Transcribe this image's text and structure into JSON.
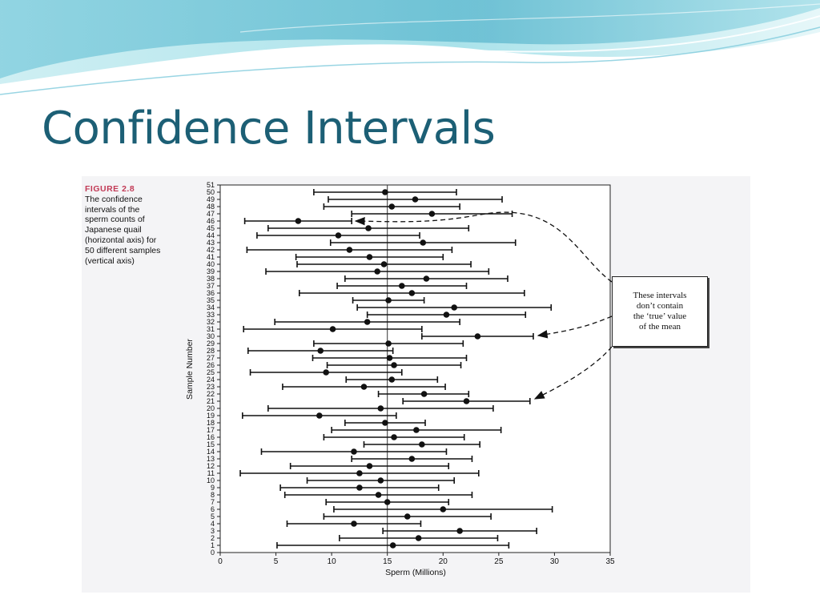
{
  "slide": {
    "title": "Confidence Intervals"
  },
  "figure": {
    "label": "FIGURE 2.8",
    "caption": "The confidence intervals of the sperm counts of Japanese quail (horizontal axis) for 50 different samples (vertical axis)",
    "annotation": "These intervals\ndon’t contain\nthe ‘true’ value\nof the mean"
  },
  "colors": {
    "title": "#1c5f75",
    "figure_label": "#c23a56",
    "banner_light": "#d8f3f5",
    "banner_mid": "#8fd6e2",
    "banner_dark": "#4fb4cc"
  },
  "chart_data": {
    "type": "scatter",
    "error_bars": "horizontal",
    "xlabel": "Sperm (Millions)",
    "ylabel": "Sample Number",
    "xlim": [
      0,
      35
    ],
    "ylim": [
      0,
      51
    ],
    "x_ticks": [
      0,
      5,
      10,
      15,
      20,
      25,
      30,
      35
    ],
    "y_ticks": [
      0,
      1,
      2,
      3,
      4,
      5,
      6,
      7,
      8,
      9,
      10,
      11,
      12,
      13,
      14,
      15,
      16,
      17,
      18,
      19,
      20,
      21,
      22,
      23,
      24,
      25,
      26,
      27,
      28,
      29,
      30,
      31,
      32,
      33,
      34,
      35,
      36,
      37,
      38,
      39,
      40,
      41,
      42,
      43,
      44,
      45,
      46,
      47,
      48,
      49,
      50,
      51
    ],
    "reference_line_x": 15,
    "samples": [
      {
        "n": 1,
        "mean": 15.5,
        "low": 5.1,
        "high": 25.9
      },
      {
        "n": 2,
        "mean": 17.8,
        "low": 10.7,
        "high": 24.9
      },
      {
        "n": 3,
        "mean": 21.5,
        "low": 14.6,
        "high": 28.4
      },
      {
        "n": 4,
        "mean": 12.0,
        "low": 6.0,
        "high": 18.0
      },
      {
        "n": 5,
        "mean": 16.8,
        "low": 9.3,
        "high": 24.3
      },
      {
        "n": 6,
        "mean": 20.0,
        "low": 10.2,
        "high": 29.8
      },
      {
        "n": 7,
        "mean": 15.0,
        "low": 9.5,
        "high": 20.5
      },
      {
        "n": 8,
        "mean": 14.2,
        "low": 5.8,
        "high": 22.6
      },
      {
        "n": 9,
        "mean": 12.5,
        "low": 5.4,
        "high": 19.6
      },
      {
        "n": 10,
        "mean": 14.4,
        "low": 7.8,
        "high": 21.0
      },
      {
        "n": 11,
        "mean": 12.5,
        "low": 1.8,
        "high": 23.2
      },
      {
        "n": 12,
        "mean": 13.4,
        "low": 6.3,
        "high": 20.5
      },
      {
        "n": 13,
        "mean": 17.2,
        "low": 11.8,
        "high": 22.6
      },
      {
        "n": 14,
        "mean": 12.0,
        "low": 3.7,
        "high": 20.3
      },
      {
        "n": 15,
        "mean": 18.1,
        "low": 12.9,
        "high": 23.3
      },
      {
        "n": 16,
        "mean": 15.6,
        "low": 9.3,
        "high": 21.9
      },
      {
        "n": 17,
        "mean": 17.6,
        "low": 10.0,
        "high": 25.2
      },
      {
        "n": 18,
        "mean": 14.8,
        "low": 11.2,
        "high": 18.4
      },
      {
        "n": 19,
        "mean": 8.9,
        "low": 2.0,
        "high": 15.8
      },
      {
        "n": 20,
        "mean": 14.4,
        "low": 4.3,
        "high": 24.5
      },
      {
        "n": 21,
        "mean": 22.1,
        "low": 16.4,
        "high": 27.8
      },
      {
        "n": 22,
        "mean": 18.3,
        "low": 14.2,
        "high": 22.3
      },
      {
        "n": 23,
        "mean": 12.9,
        "low": 5.6,
        "high": 20.2
      },
      {
        "n": 24,
        "mean": 15.4,
        "low": 11.3,
        "high": 19.5
      },
      {
        "n": 25,
        "mean": 9.5,
        "low": 2.7,
        "high": 16.3
      },
      {
        "n": 26,
        "mean": 15.6,
        "low": 9.6,
        "high": 21.6
      },
      {
        "n": 27,
        "mean": 15.2,
        "low": 8.3,
        "high": 22.1
      },
      {
        "n": 28,
        "mean": 9.0,
        "low": 2.5,
        "high": 15.5
      },
      {
        "n": 29,
        "mean": 15.1,
        "low": 8.4,
        "high": 21.8
      },
      {
        "n": 30,
        "mean": 23.1,
        "low": 18.1,
        "high": 28.1
      },
      {
        "n": 31,
        "mean": 10.1,
        "low": 2.1,
        "high": 18.1
      },
      {
        "n": 32,
        "mean": 13.2,
        "low": 4.9,
        "high": 21.5
      },
      {
        "n": 33,
        "mean": 20.3,
        "low": 13.2,
        "high": 27.4
      },
      {
        "n": 34,
        "mean": 21.0,
        "low": 12.3,
        "high": 29.7
      },
      {
        "n": 35,
        "mean": 15.1,
        "low": 11.9,
        "high": 18.3
      },
      {
        "n": 36,
        "mean": 17.2,
        "low": 7.1,
        "high": 27.3
      },
      {
        "n": 37,
        "mean": 16.3,
        "low": 10.5,
        "high": 22.1
      },
      {
        "n": 38,
        "mean": 18.5,
        "low": 11.2,
        "high": 25.8
      },
      {
        "n": 39,
        "mean": 14.1,
        "low": 4.1,
        "high": 24.1
      },
      {
        "n": 40,
        "mean": 14.7,
        "low": 6.9,
        "high": 22.5
      },
      {
        "n": 41,
        "mean": 13.4,
        "low": 6.8,
        "high": 20.0
      },
      {
        "n": 42,
        "mean": 11.6,
        "low": 2.4,
        "high": 20.8
      },
      {
        "n": 43,
        "mean": 18.2,
        "low": 9.9,
        "high": 26.5
      },
      {
        "n": 44,
        "mean": 10.6,
        "low": 3.3,
        "high": 17.9
      },
      {
        "n": 45,
        "mean": 13.3,
        "low": 4.3,
        "high": 22.3
      },
      {
        "n": 46,
        "mean": 7.0,
        "low": 2.2,
        "high": 11.8
      },
      {
        "n": 47,
        "mean": 19.0,
        "low": 11.8,
        "high": 26.2
      },
      {
        "n": 48,
        "mean": 15.4,
        "low": 9.3,
        "high": 21.5
      },
      {
        "n": 49,
        "mean": 17.5,
        "low": 9.7,
        "high": 25.3
      },
      {
        "n": 50,
        "mean": 14.8,
        "low": 8.4,
        "high": 21.2
      }
    ]
  }
}
